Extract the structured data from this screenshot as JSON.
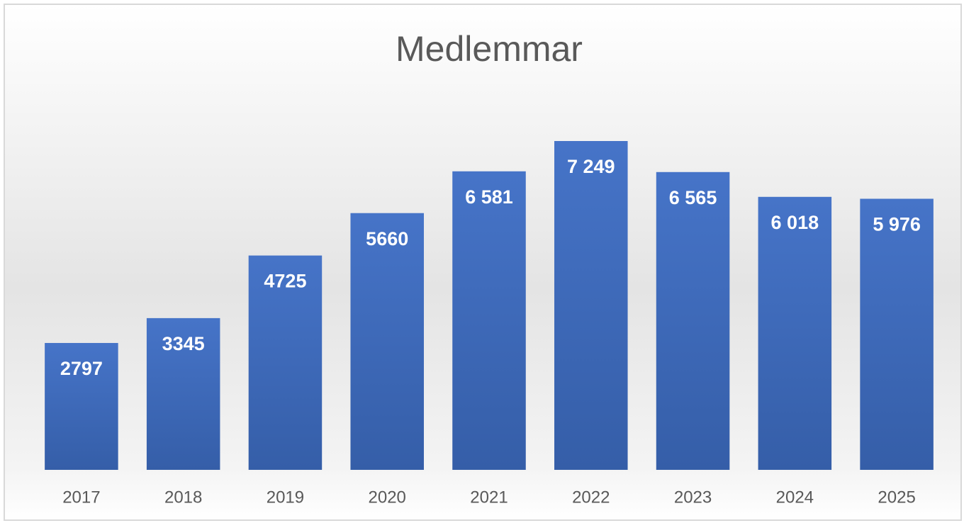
{
  "chart_data": {
    "type": "bar",
    "title": "Medlemmar",
    "categories": [
      "2017",
      "2018",
      "2019",
      "2020",
      "2021",
      "2022",
      "2023",
      "2024",
      "2025"
    ],
    "values": [
      2797,
      3345,
      4725,
      5660,
      6581,
      7249,
      6565,
      6018,
      5976
    ],
    "value_labels": [
      "2797",
      "3345",
      "4725",
      "5660",
      "6 581",
      "7 249",
      "6 565",
      "6 018",
      "5 976"
    ],
    "color": "#4472c4"
  }
}
